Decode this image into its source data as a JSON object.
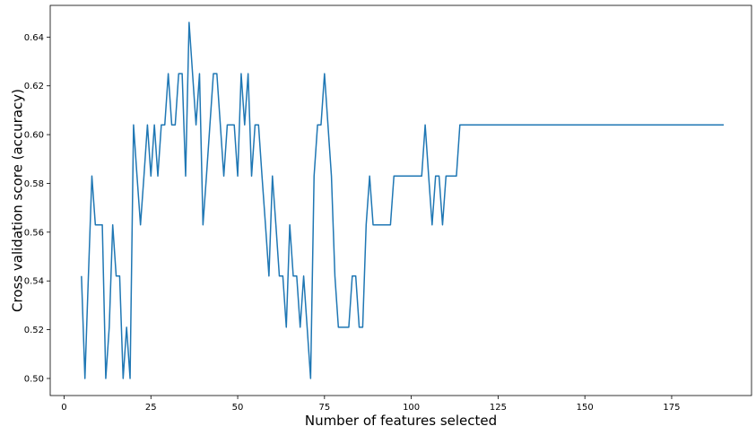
{
  "chart_data": {
    "type": "line",
    "title": "",
    "xlabel": "Number of features selected",
    "ylabel": "Cross validation score (accuracy)",
    "xlim": [
      -4,
      198
    ],
    "ylim": [
      0.493,
      0.653
    ],
    "xticks": [
      0,
      25,
      50,
      75,
      100,
      125,
      150,
      175
    ],
    "xtick_labels": [
      "0",
      "25",
      "50",
      "75",
      "100",
      "125",
      "150",
      "175"
    ],
    "yticks": [
      0.5,
      0.52,
      0.54,
      0.56,
      0.58,
      0.6,
      0.62,
      0.64
    ],
    "ytick_labels": [
      "0.50",
      "0.52",
      "0.54",
      "0.56",
      "0.58",
      "0.60",
      "0.62",
      "0.64"
    ],
    "grid": false,
    "line_color": "#1f77b4",
    "series": [
      {
        "x": [
          5,
          6,
          7,
          8,
          9,
          10,
          11,
          12,
          13,
          14,
          15,
          16,
          17,
          18,
          19,
          20,
          21,
          22,
          23,
          24,
          25,
          26,
          27,
          28,
          29,
          30,
          31,
          32,
          33,
          34,
          35,
          36,
          37,
          38,
          39,
          40,
          41,
          42,
          43,
          44,
          45,
          46,
          47,
          48,
          49,
          50,
          51,
          52,
          53,
          54,
          55,
          56,
          57,
          58,
          59,
          60,
          61,
          62,
          63,
          64,
          65,
          66,
          67,
          68,
          69,
          70,
          71,
          72,
          73,
          74,
          75,
          76,
          77,
          78,
          79,
          80,
          81,
          82,
          83,
          84,
          85,
          86,
          87,
          88,
          89,
          90,
          91,
          92,
          93,
          94,
          95,
          96,
          97,
          98,
          99,
          100,
          101,
          102,
          103,
          104,
          105,
          106,
          107,
          108,
          109,
          110,
          111,
          112,
          113,
          114,
          190
        ],
        "y": [
          0.542,
          0.5,
          0.542,
          0.583,
          0.563,
          0.563,
          0.563,
          0.5,
          0.521,
          0.563,
          0.542,
          0.542,
          0.5,
          0.521,
          0.5,
          0.604,
          0.583,
          0.563,
          0.583,
          0.604,
          0.583,
          0.604,
          0.583,
          0.604,
          0.604,
          0.625,
          0.604,
          0.604,
          0.625,
          0.625,
          0.583,
          0.646,
          0.625,
          0.604,
          0.625,
          0.563,
          0.583,
          0.604,
          0.625,
          0.625,
          0.604,
          0.583,
          0.604,
          0.604,
          0.604,
          0.583,
          0.625,
          0.604,
          0.625,
          0.583,
          0.604,
          0.604,
          0.583,
          0.563,
          0.542,
          0.583,
          0.563,
          0.542,
          0.542,
          0.521,
          0.563,
          0.542,
          0.542,
          0.521,
          0.542,
          0.521,
          0.5,
          0.583,
          0.604,
          0.604,
          0.625,
          0.604,
          0.583,
          0.542,
          0.521,
          0.521,
          0.521,
          0.521,
          0.542,
          0.542,
          0.521,
          0.521,
          0.563,
          0.583,
          0.563,
          0.563,
          0.563,
          0.563,
          0.563,
          0.563,
          0.583,
          0.583,
          0.583,
          0.583,
          0.583,
          0.583,
          0.583,
          0.583,
          0.583,
          0.604,
          0.583,
          0.563,
          0.583,
          0.583,
          0.563,
          0.583,
          0.583,
          0.583,
          0.583,
          0.604,
          0.604
        ]
      }
    ]
  }
}
